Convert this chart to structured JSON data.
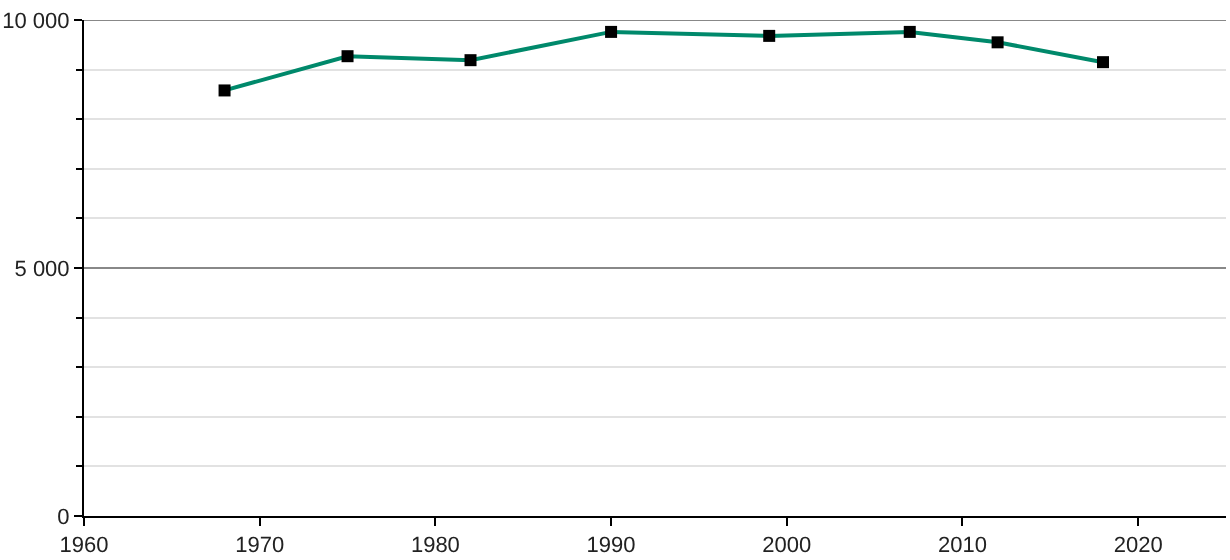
{
  "chart_data": {
    "type": "line",
    "x": [
      1968,
      1975,
      1982,
      1990,
      1999,
      2007,
      2012,
      2018
    ],
    "series": [
      {
        "color": "#00896b",
        "values": [
          8580,
          9270,
          9190,
          9760,
          9680,
          9760,
          9550,
          9150
        ]
      }
    ],
    "xlim": [
      1960,
      2025
    ],
    "xticks": [
      1960,
      1970,
      1980,
      1990,
      2000,
      2010,
      2020
    ],
    "ylim": [
      0,
      10000
    ],
    "yticks": [
      {
        "value": 0,
        "label": "0"
      },
      {
        "value": 1000,
        "label": null
      },
      {
        "value": 2000,
        "label": null
      },
      {
        "value": 3000,
        "label": null
      },
      {
        "value": 4000,
        "label": null
      },
      {
        "value": 5000,
        "label": "5 000"
      },
      {
        "value": 6000,
        "label": null
      },
      {
        "value": 7000,
        "label": null
      },
      {
        "value": 8000,
        "label": null
      },
      {
        "value": 9000,
        "label": null
      },
      {
        "value": 10000,
        "label": "10 000"
      }
    ],
    "ref_lines": [
      {
        "axis": "y",
        "value": 5000,
        "color": "#888888"
      },
      {
        "axis": "y",
        "value": 10000,
        "color": "#888888"
      }
    ],
    "grid": "y",
    "marker": "square",
    "line_style": "solid",
    "legend": false
  }
}
